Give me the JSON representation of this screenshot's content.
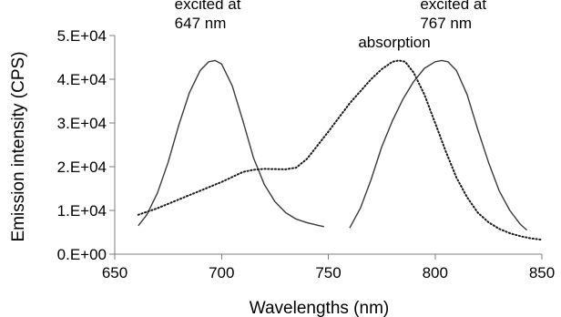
{
  "chart_data": {
    "type": "line",
    "title": "",
    "xlabel": "Wavelengths (nm)",
    "ylabel": "Emission intensity (CPS)",
    "xlim": [
      650,
      850
    ],
    "ylim": [
      0,
      50000
    ],
    "x_ticks": [
      650,
      700,
      750,
      800,
      850
    ],
    "y_ticks": [
      0,
      10000,
      20000,
      30000,
      40000,
      50000
    ],
    "x_tick_labels": [
      "650",
      "700",
      "750",
      "800",
      "850"
    ],
    "y_tick_labels": [
      "0.E+00",
      "1.E+04",
      "2.E+04",
      "3.E+04",
      "4.E+04",
      "5.E+04"
    ],
    "grid": false,
    "legend": "none",
    "annotations": [
      {
        "lines": [
          "excited at",
          "647 nm"
        ],
        "x": 678,
        "y": 56000
      },
      {
        "lines": [
          "absorption"
        ],
        "x": 764,
        "y": 47300
      },
      {
        "lines": [
          "excited at",
          "767 nm"
        ],
        "x": 793,
        "y": 56000
      }
    ],
    "series": [
      {
        "style": "solid",
        "x": [
          661,
          665,
          670,
          675,
          680,
          685,
          690,
          694,
          697,
          700,
          705,
          710,
          715,
          720,
          725,
          730,
          735,
          740,
          745,
          748
        ],
        "y": [
          6500,
          9000,
          14000,
          21000,
          29500,
          37000,
          42000,
          44000,
          44300,
          43500,
          38500,
          30500,
          22000,
          16000,
          12000,
          9500,
          8000,
          7200,
          6600,
          6300
        ]
      },
      {
        "style": "dotted",
        "x": [
          661,
          670,
          680,
          690,
          700,
          710,
          715,
          720,
          730,
          735,
          740,
          750,
          760,
          770,
          775,
          780,
          783,
          786,
          790,
          795,
          800,
          805,
          810,
          815,
          820,
          825,
          830,
          835,
          840,
          845,
          850
        ],
        "y": [
          9000,
          10500,
          12500,
          14500,
          16500,
          18800,
          19300,
          19500,
          19400,
          19800,
          21800,
          28000,
          34500,
          40000,
          42300,
          44000,
          44300,
          44000,
          41500,
          36500,
          30000,
          23500,
          17500,
          13000,
          9500,
          7300,
          5800,
          4800,
          4100,
          3600,
          3300
        ]
      },
      {
        "style": "solid",
        "x": [
          760,
          765,
          770,
          775,
          780,
          785,
          790,
          795,
          800,
          803,
          806,
          810,
          815,
          820,
          825,
          830,
          835,
          840,
          843
        ],
        "y": [
          6000,
          10500,
          17000,
          24500,
          30500,
          35500,
          39500,
          42500,
          44000,
          44300,
          44000,
          42000,
          36500,
          28500,
          21000,
          14500,
          10000,
          6800,
          5500
        ]
      }
    ]
  }
}
